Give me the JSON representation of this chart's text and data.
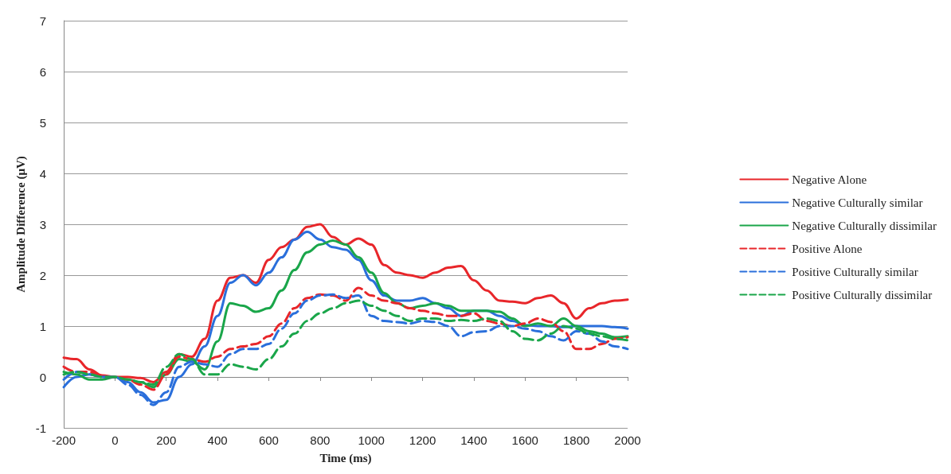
{
  "chart_data": {
    "type": "line",
    "xlabel": "Time (ms)",
    "ylabel": "Amplitude Difference (μV)",
    "x": [
      -200,
      -150,
      -100,
      -50,
      0,
      50,
      100,
      150,
      200,
      250,
      300,
      350,
      400,
      450,
      500,
      550,
      600,
      650,
      700,
      750,
      800,
      850,
      900,
      950,
      1000,
      1050,
      1100,
      1150,
      1200,
      1250,
      1300,
      1350,
      1400,
      1450,
      1500,
      1550,
      1600,
      1650,
      1700,
      1750,
      1800,
      1850,
      1900,
      1950,
      2000
    ],
    "series": [
      {
        "name": "Negative Alone",
        "color": "#e8262a",
        "line_style": "solid",
        "values": [
          0.38,
          0.35,
          0.15,
          0.03,
          0.0,
          0.0,
          -0.02,
          -0.1,
          0.1,
          0.45,
          0.4,
          0.75,
          1.5,
          1.95,
          2.0,
          1.85,
          2.3,
          2.55,
          2.7,
          2.95,
          3.0,
          2.75,
          2.6,
          2.72,
          2.6,
          2.2,
          2.05,
          2.0,
          1.95,
          2.05,
          2.15,
          2.18,
          1.9,
          1.7,
          1.5,
          1.48,
          1.45,
          1.55,
          1.6,
          1.45,
          1.15,
          1.35,
          1.45,
          1.5,
          1.52
        ]
      },
      {
        "name": "Negative Culturally similar",
        "color": "#2a6fdb",
        "line_style": "solid",
        "values": [
          -0.2,
          0.0,
          0.05,
          0.0,
          0.0,
          -0.1,
          -0.3,
          -0.5,
          -0.45,
          0.0,
          0.25,
          0.6,
          1.2,
          1.85,
          2.0,
          1.8,
          2.05,
          2.35,
          2.7,
          2.85,
          2.7,
          2.55,
          2.5,
          2.3,
          1.9,
          1.6,
          1.5,
          1.5,
          1.55,
          1.45,
          1.35,
          1.2,
          1.3,
          1.3,
          1.2,
          1.1,
          1.02,
          1.0,
          1.0,
          0.98,
          1.0,
          1.0,
          1.0,
          0.98,
          0.95
        ]
      },
      {
        "name": "Negative Culturally dissimilar",
        "color": "#1aa64a",
        "line_style": "solid",
        "values": [
          0.1,
          0.05,
          -0.05,
          -0.05,
          0.0,
          -0.05,
          -0.1,
          -0.2,
          0.05,
          0.35,
          0.3,
          0.15,
          0.7,
          1.45,
          1.4,
          1.28,
          1.35,
          1.7,
          2.1,
          2.45,
          2.6,
          2.68,
          2.6,
          2.35,
          2.05,
          1.65,
          1.45,
          1.35,
          1.4,
          1.45,
          1.4,
          1.3,
          1.3,
          1.3,
          1.28,
          1.15,
          1.0,
          1.05,
          1.0,
          1.15,
          1.0,
          0.9,
          0.85,
          0.78,
          0.8
        ]
      },
      {
        "name": "Positive Alone",
        "color": "#e8262a",
        "line_style": "dashed",
        "values": [
          0.2,
          0.1,
          0.1,
          0.0,
          0.0,
          -0.05,
          -0.15,
          -0.25,
          0.05,
          0.4,
          0.35,
          0.3,
          0.4,
          0.55,
          0.6,
          0.65,
          0.8,
          1.05,
          1.35,
          1.55,
          1.62,
          1.6,
          1.5,
          1.75,
          1.6,
          1.5,
          1.45,
          1.35,
          1.3,
          1.25,
          1.2,
          1.2,
          1.25,
          1.1,
          1.05,
          1.0,
          1.05,
          1.15,
          1.08,
          0.9,
          0.55,
          0.55,
          0.65,
          0.75,
          0.78
        ]
      },
      {
        "name": "Positive Culturally similar",
        "color": "#2a6fdb",
        "line_style": "dashed",
        "values": [
          -0.05,
          0.1,
          0.05,
          0.0,
          0.0,
          -0.15,
          -0.35,
          -0.55,
          -0.3,
          0.2,
          0.3,
          0.25,
          0.2,
          0.45,
          0.55,
          0.55,
          0.65,
          0.95,
          1.25,
          1.5,
          1.6,
          1.62,
          1.55,
          1.6,
          1.2,
          1.1,
          1.08,
          1.05,
          1.1,
          1.08,
          1.0,
          0.8,
          0.88,
          0.9,
          1.0,
          1.0,
          0.95,
          0.9,
          0.8,
          0.72,
          0.9,
          0.85,
          0.7,
          0.6,
          0.55
        ]
      },
      {
        "name": "Positive Culturally dissimilar",
        "color": "#1aa64a",
        "line_style": "dashed",
        "values": [
          0.05,
          0.1,
          0.05,
          0.0,
          0.0,
          -0.05,
          -0.1,
          -0.15,
          0.2,
          0.45,
          0.35,
          0.05,
          0.05,
          0.25,
          0.2,
          0.15,
          0.35,
          0.6,
          0.85,
          1.1,
          1.25,
          1.35,
          1.45,
          1.5,
          1.4,
          1.3,
          1.2,
          1.1,
          1.15,
          1.15,
          1.1,
          1.12,
          1.1,
          1.15,
          1.1,
          0.9,
          0.75,
          0.72,
          0.85,
          1.0,
          0.95,
          0.85,
          0.8,
          0.75,
          0.72
        ]
      }
    ],
    "xlim": [
      -200,
      2000
    ],
    "xticks": [
      -200,
      0,
      200,
      400,
      600,
      800,
      1000,
      1200,
      1400,
      1600,
      1800,
      2000
    ],
    "ylim": [
      -1,
      7
    ],
    "yticks": [
      -1,
      0,
      1,
      2,
      3,
      4,
      5,
      6,
      7
    ],
    "grid": "y",
    "legend": "right",
    "marker": "none"
  }
}
